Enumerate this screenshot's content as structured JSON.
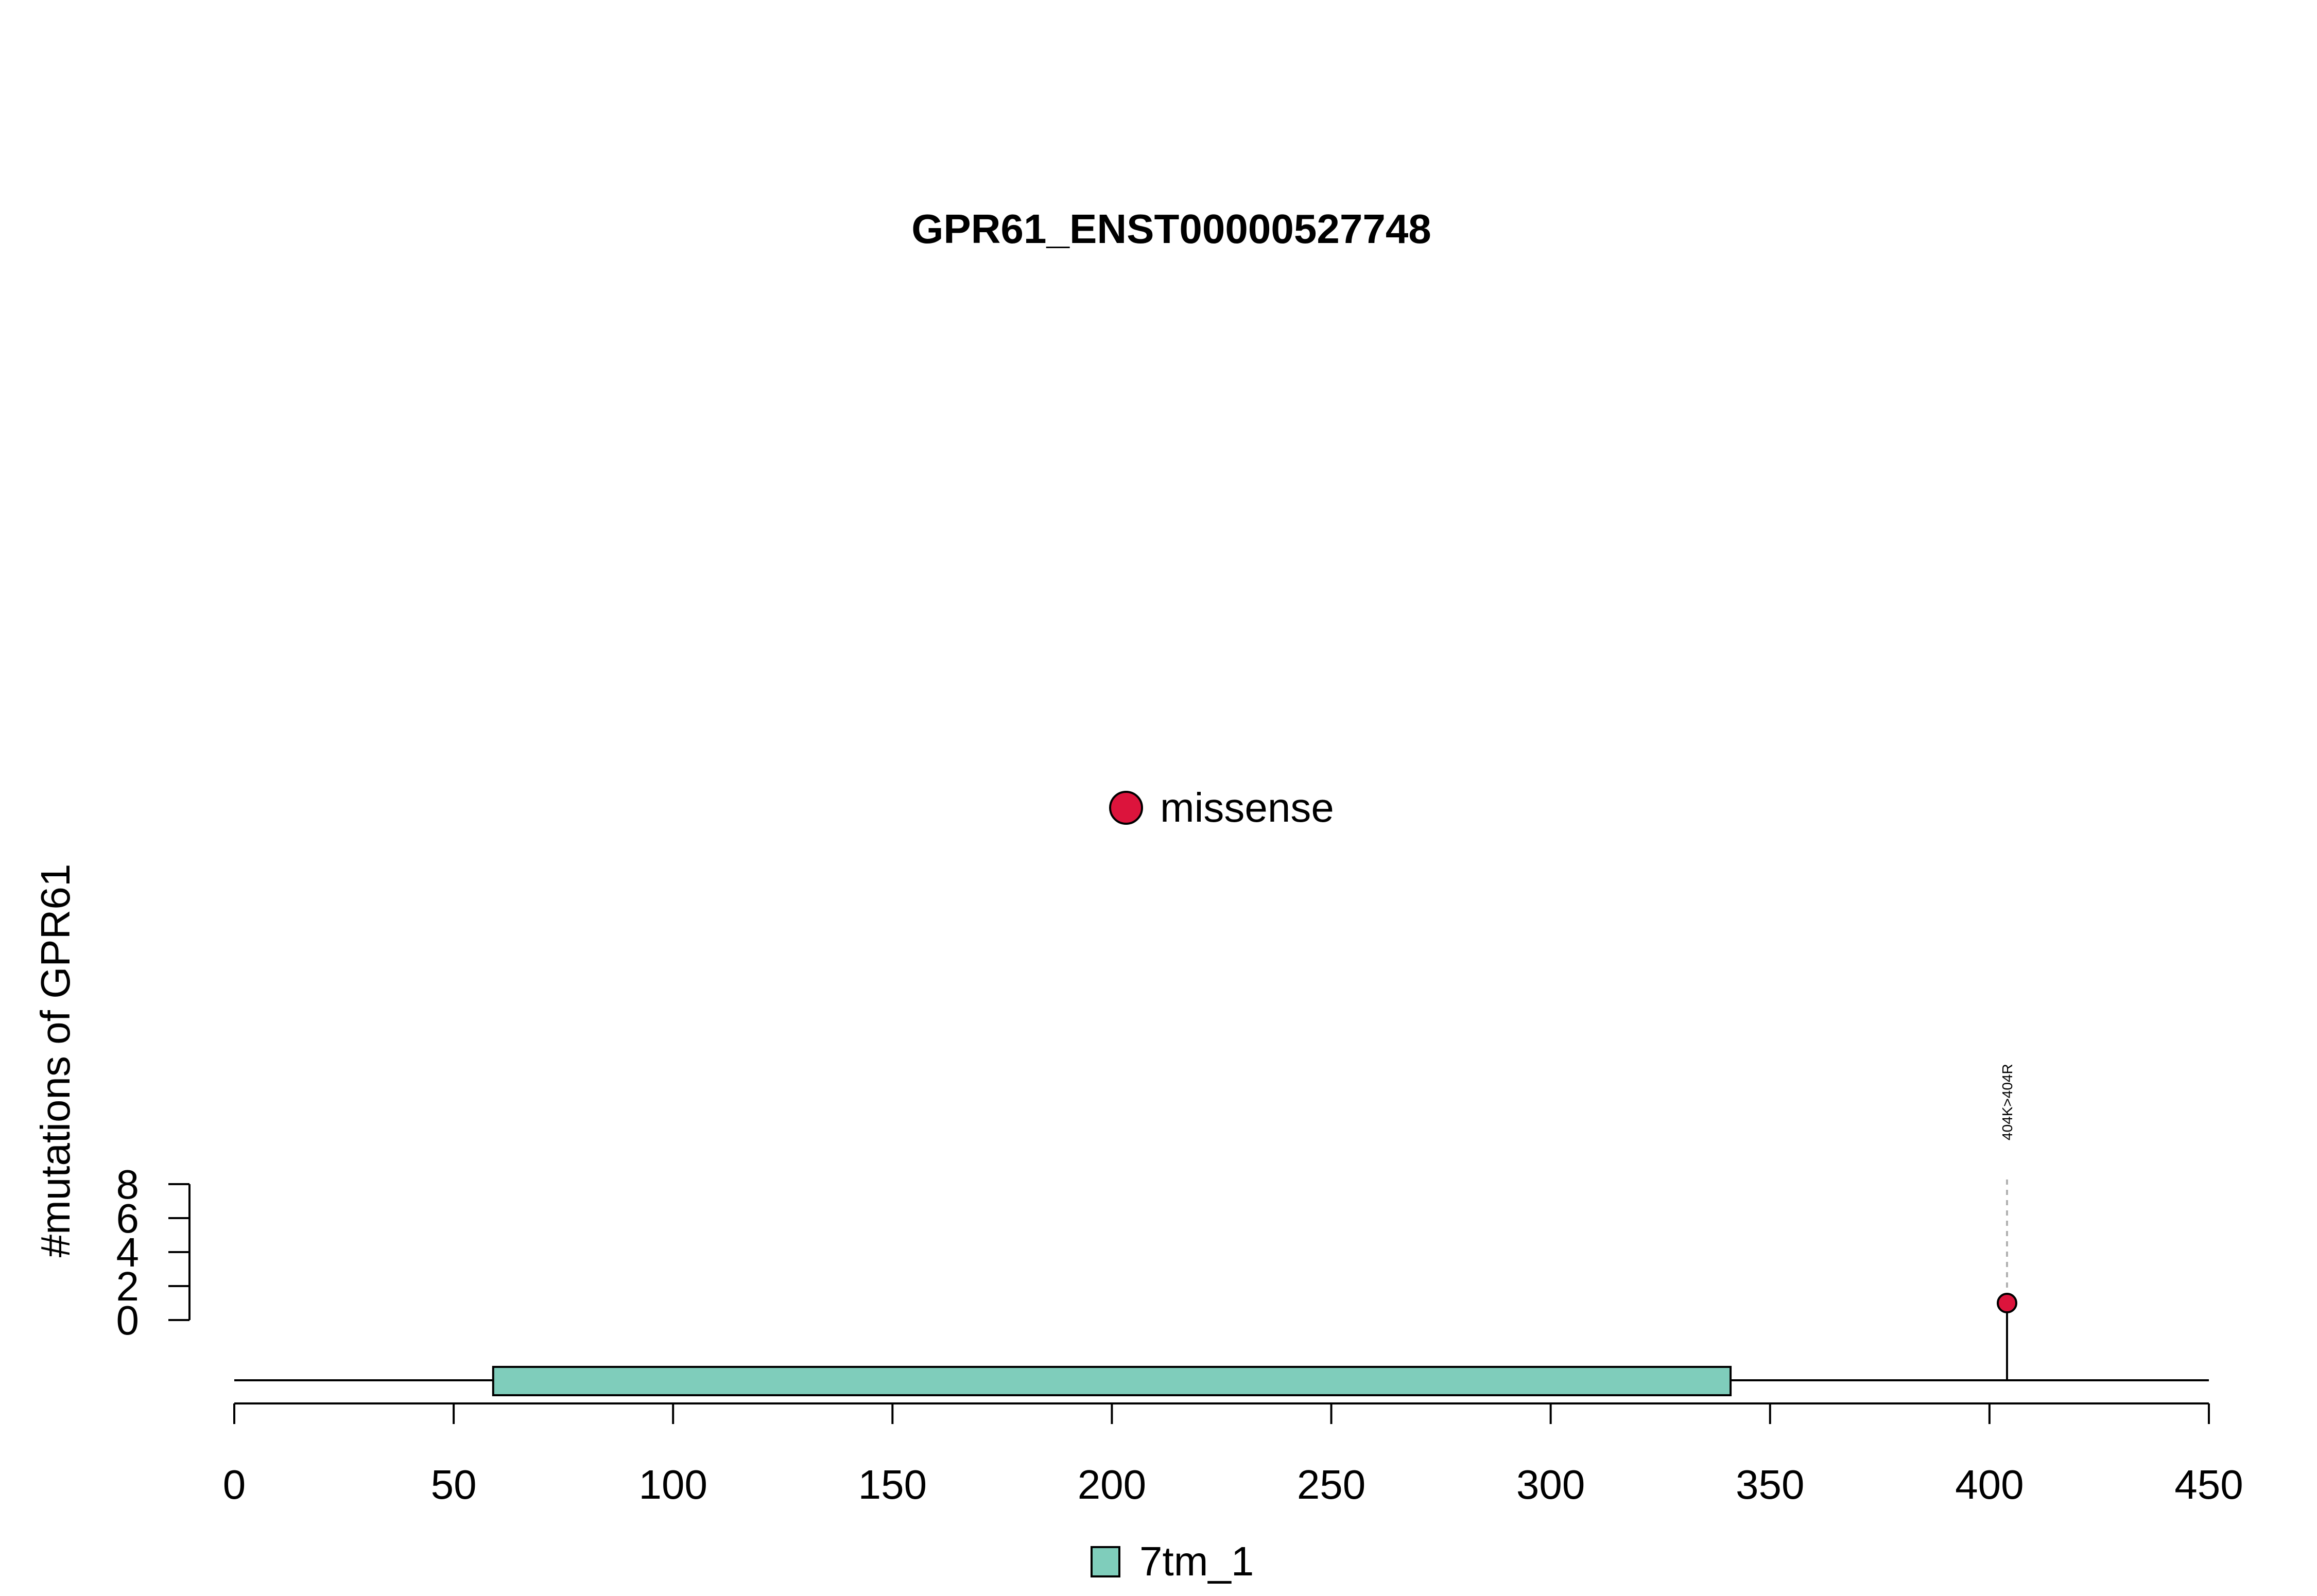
{
  "chart_data": {
    "type": "lollipop",
    "title": "GPR61_ENST00000527748",
    "ylabel": "#mutations of GPR61",
    "xlim": [
      0,
      450
    ],
    "x_ticks": [
      0,
      50,
      100,
      150,
      200,
      250,
      300,
      350,
      400,
      450
    ],
    "ylim": [
      0,
      8
    ],
    "y_ticks": [
      0,
      2,
      4,
      6,
      8
    ],
    "protein_length": 450,
    "domains": [
      {
        "name": "7tm_1",
        "start": 59,
        "end": 341,
        "color": "#7FCDBB"
      }
    ],
    "mutations": [
      {
        "position": 404,
        "count": 1,
        "label": "404K>404R",
        "type": "missense"
      }
    ],
    "mutation_types": [
      {
        "name": "missense",
        "color": "#DC143C"
      }
    ],
    "legend_domains": [
      "7tm_1"
    ],
    "legend_mutation_types": [
      "missense"
    ]
  }
}
